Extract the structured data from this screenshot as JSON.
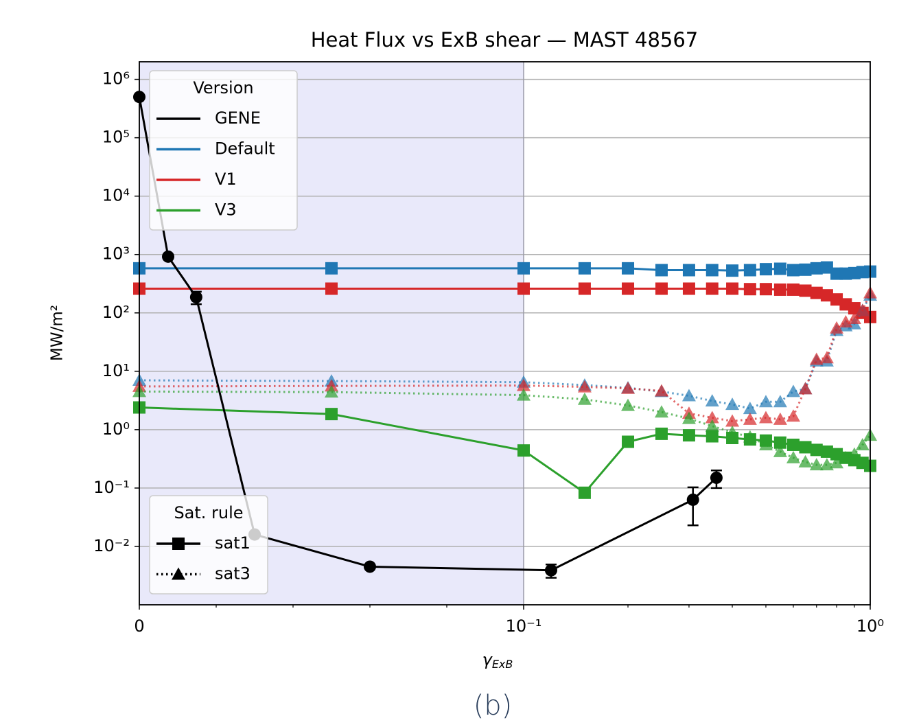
{
  "chart_data": {
    "type": "line",
    "title": "Heat Flux vs ExB shear — MAST 48567",
    "ylabel": "MW/m²",
    "xlabel_symbol": "γ",
    "xlabel_subscript": "ExB",
    "caption": "(b)",
    "xscale": "symlog",
    "linthresh": 0.1,
    "yscale": "log",
    "xlim": [
      0,
      1
    ],
    "ylim": [
      0.001,
      2000000
    ],
    "xticks": [
      0,
      {
        "value": 0.1,
        "label": "10⁻¹"
      },
      {
        "value": 1,
        "label": "10⁰"
      }
    ],
    "xminorticks": [
      0.02,
      0.04,
      0.06,
      0.08,
      0.2,
      0.3,
      0.4,
      0.5,
      0.6,
      0.7,
      0.8,
      0.9
    ],
    "yticks": [
      {
        "value": 0.01,
        "label": "10⁻²"
      },
      {
        "value": 0.1,
        "label": "10⁻¹"
      },
      {
        "value": 1,
        "label": "10⁰"
      },
      {
        "value": 10,
        "label": "10¹"
      },
      {
        "value": 100,
        "label": "10²"
      },
      {
        "value": 1000,
        "label": "10³"
      },
      {
        "value": 10000,
        "label": "10⁴"
      },
      {
        "value": 100000,
        "label": "10⁵"
      },
      {
        "value": 1000000,
        "label": "10⁶"
      }
    ],
    "grid": true,
    "span": {
      "x": [
        0,
        0.1
      ],
      "color": "#e9e9fa"
    },
    "legends": [
      {
        "title": "Version",
        "loc": "upper left",
        "entries": [
          {
            "name": "GENE",
            "color": "#000000"
          },
          {
            "name": "Default",
            "color": "#1f77b4"
          },
          {
            "name": "V1",
            "color": "#d62728"
          },
          {
            "name": "V3",
            "color": "#2ca02c"
          }
        ]
      },
      {
        "title": "Sat. rule",
        "loc": "lower left",
        "entries": [
          {
            "name": "sat1",
            "marker": "square",
            "dash": "solid"
          },
          {
            "name": "sat3",
            "marker": "triangle",
            "dash": "dotted"
          }
        ]
      }
    ],
    "series": [
      {
        "version": 1,
        "rule": 0,
        "x": [
          0,
          0.05,
          0.1,
          0.15,
          0.2,
          0.25,
          0.3,
          0.35,
          0.4,
          0.45,
          0.5,
          0.55,
          0.6,
          0.65,
          0.7,
          0.75,
          0.8,
          0.85,
          0.9,
          0.95,
          1.0
        ],
        "values": [
          580,
          580,
          580,
          580,
          580,
          540,
          540,
          540,
          530,
          540,
          560,
          570,
          540,
          550,
          580,
          600,
          470,
          470,
          480,
          500,
          510
        ]
      },
      {
        "version": 2,
        "rule": 0,
        "x": [
          0,
          0.05,
          0.1,
          0.15,
          0.2,
          0.25,
          0.3,
          0.35,
          0.4,
          0.45,
          0.5,
          0.55,
          0.6,
          0.65,
          0.7,
          0.75,
          0.8,
          0.85,
          0.9,
          0.95,
          1.0
        ],
        "values": [
          260,
          260,
          260,
          260,
          260,
          260,
          260,
          260,
          260,
          255,
          255,
          250,
          250,
          240,
          220,
          200,
          170,
          140,
          120,
          100,
          85
        ]
      },
      {
        "version": 3,
        "rule": 0,
        "x": [
          0,
          0.05,
          0.1,
          0.15,
          0.2,
          0.25,
          0.3,
          0.35,
          0.4,
          0.45,
          0.5,
          0.55,
          0.6,
          0.65,
          0.7,
          0.75,
          0.8,
          0.85,
          0.9,
          0.95,
          1.0
        ],
        "values": [
          2.4,
          1.85,
          0.44,
          0.083,
          0.62,
          0.85,
          0.8,
          0.77,
          0.72,
          0.68,
          0.65,
          0.6,
          0.55,
          0.5,
          0.45,
          0.42,
          0.38,
          0.33,
          0.3,
          0.27,
          0.24
        ]
      },
      {
        "version": 1,
        "rule": 1,
        "x": [
          0,
          0.05,
          0.1,
          0.15,
          0.2,
          0.25,
          0.3,
          0.35,
          0.4,
          0.45,
          0.5,
          0.55,
          0.6,
          0.65,
          0.7,
          0.75,
          0.8,
          0.85,
          0.9,
          0.95,
          1.0
        ],
        "values": [
          7,
          6.8,
          6.5,
          5.8,
          5.2,
          4.5,
          3.8,
          3.1,
          2.7,
          2.3,
          3,
          3,
          4.5,
          5,
          15,
          15,
          50,
          60,
          65,
          110,
          200
        ]
      },
      {
        "version": 2,
        "rule": 1,
        "x": [
          0,
          0.05,
          0.1,
          0.15,
          0.2,
          0.25,
          0.3,
          0.35,
          0.4,
          0.45,
          0.5,
          0.55,
          0.6,
          0.65,
          0.7,
          0.75,
          0.8,
          0.85,
          0.9,
          0.95,
          1.0
        ],
        "values": [
          5.5,
          5.6,
          5.7,
          5.4,
          5.1,
          4.6,
          1.9,
          1.6,
          1.4,
          1.5,
          1.6,
          1.5,
          1.7,
          5,
          16,
          17,
          55,
          70,
          80,
          110,
          220
        ]
      },
      {
        "version": 3,
        "rule": 1,
        "x": [
          0,
          0.05,
          0.1,
          0.15,
          0.2,
          0.25,
          0.3,
          0.35,
          0.4,
          0.45,
          0.5,
          0.55,
          0.6,
          0.65,
          0.7,
          0.75,
          0.8,
          0.85,
          0.9,
          0.95,
          1.0
        ],
        "values": [
          4.5,
          4.4,
          3.9,
          3.3,
          2.6,
          2.0,
          1.55,
          1.15,
          0.9,
          0.75,
          0.55,
          0.42,
          0.33,
          0.28,
          0.25,
          0.25,
          0.27,
          0.33,
          0.38,
          0.55,
          0.8
        ]
      }
    ],
    "gene": {
      "version": 0,
      "x": [
        0,
        0.0075,
        0.0148,
        0.03,
        0.06,
        0.12,
        0.308,
        0.36
      ],
      "values": [
        500000,
        920,
        186,
        0.016,
        0.0045,
        0.0039,
        0.063,
        0.15
      ],
      "errors": [
        null,
        null,
        45,
        null,
        null,
        0.001,
        0.04,
        0.05
      ]
    }
  }
}
